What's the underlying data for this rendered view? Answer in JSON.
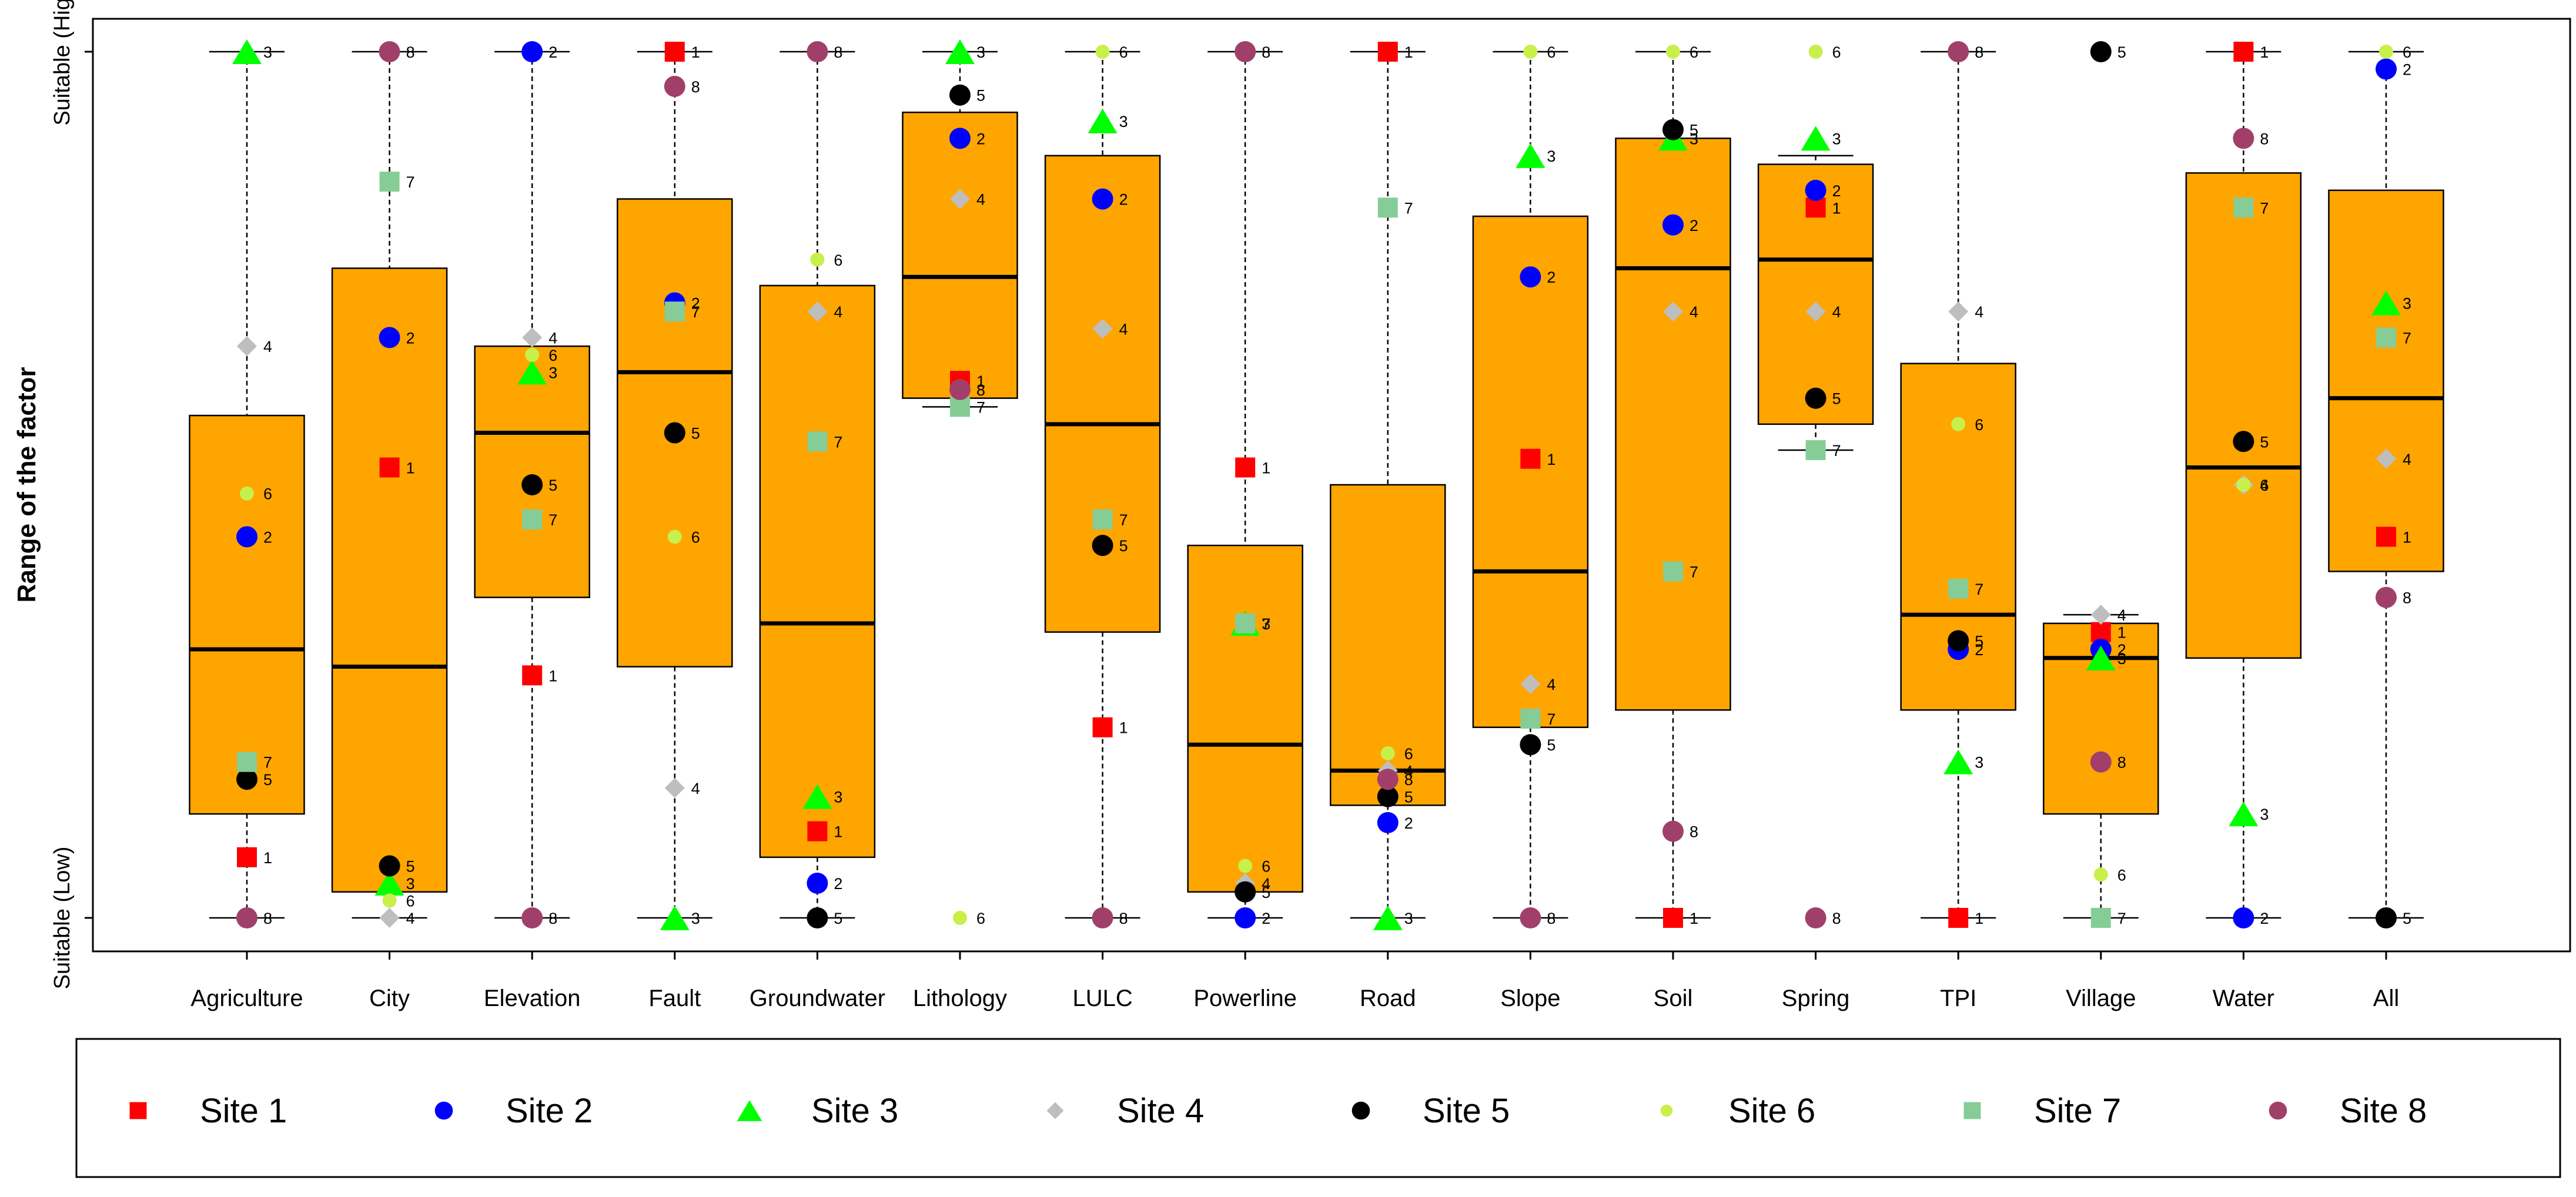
{
  "chart_data": {
    "type": "boxplot",
    "ylabel": "Range of the factor",
    "ylim": [
      0,
      1
    ],
    "y_ticks": [
      {
        "value": 0,
        "label": "Suitable (Low)"
      },
      {
        "value": 1,
        "label": "Suitable (High)"
      }
    ],
    "categories": [
      "Agriculture",
      "City",
      "Elevation",
      "Fault",
      "Groundwater",
      "Lithology",
      "LULC",
      "Powerline",
      "Road",
      "Slope",
      "Soil",
      "Spring",
      "TPI",
      "Village",
      "Water",
      "All"
    ],
    "boxes": [
      {
        "q1": 0.12,
        "median": 0.31,
        "q3": 0.58,
        "min": 0,
        "max": 1
      },
      {
        "q1": 0.03,
        "median": 0.29,
        "q3": 0.75,
        "min": 0,
        "max": 1
      },
      {
        "q1": 0.37,
        "median": 0.56,
        "q3": 0.66,
        "min": 0,
        "max": 1
      },
      {
        "q1": 0.29,
        "median": 0.63,
        "q3": 0.83,
        "min": 0,
        "max": 1
      },
      {
        "q1": 0.07,
        "median": 0.34,
        "q3": 0.73,
        "min": 0,
        "max": 1
      },
      {
        "q1": 0.6,
        "median": 0.74,
        "q3": 0.93,
        "min": 0.59,
        "max": 1
      },
      {
        "q1": 0.33,
        "median": 0.57,
        "q3": 0.88,
        "min": 0,
        "max": 1
      },
      {
        "q1": 0.03,
        "median": 0.2,
        "q3": 0.43,
        "min": 0,
        "max": 1
      },
      {
        "q1": 0.13,
        "median": 0.17,
        "q3": 0.5,
        "min": 0,
        "max": 1
      },
      {
        "q1": 0.22,
        "median": 0.4,
        "q3": 0.81,
        "min": 0,
        "max": 1
      },
      {
        "q1": 0.24,
        "median": 0.75,
        "q3": 0.9,
        "min": 0,
        "max": 1
      },
      {
        "q1": 0.57,
        "median": 0.76,
        "q3": 0.87,
        "min": 0.54,
        "max": 0.88
      },
      {
        "q1": 0.24,
        "median": 0.35,
        "q3": 0.64,
        "min": 0,
        "max": 1
      },
      {
        "q1": 0.12,
        "median": 0.3,
        "q3": 0.34,
        "min": 0,
        "max": 0.35
      },
      {
        "q1": 0.3,
        "median": 0.52,
        "q3": 0.86,
        "min": 0,
        "max": 1
      },
      {
        "q1": 0.4,
        "median": 0.6,
        "q3": 0.84,
        "min": 0,
        "max": 1
      }
    ],
    "series": [
      {
        "name": "Site 1",
        "label": "1",
        "shape": "square",
        "color": "#ff0000",
        "values": [
          0.07,
          0.52,
          0.28,
          1.0,
          0.1,
          0.62,
          0.22,
          0.52,
          1.0,
          0.53,
          0.0,
          0.82,
          0.0,
          0.33,
          1.0,
          0.44
        ]
      },
      {
        "name": "Site 2",
        "label": "2",
        "shape": "circle",
        "color": "#0000ff",
        "values": [
          0.44,
          0.67,
          1.0,
          0.71,
          0.04,
          0.9,
          0.83,
          0.0,
          0.11,
          0.74,
          0.8,
          0.84,
          0.31,
          0.31,
          0.0,
          0.98
        ]
      },
      {
        "name": "Site 3",
        "label": "3",
        "shape": "triangle",
        "color": "#00ff00",
        "values": [
          1.0,
          0.04,
          0.63,
          0.0,
          0.14,
          1.0,
          0.92,
          0.34,
          0.0,
          0.88,
          0.9,
          0.9,
          0.18,
          0.3,
          0.12,
          0.71
        ]
      },
      {
        "name": "Site 4",
        "label": "4",
        "shape": "diamond",
        "color": "#bebebe",
        "values": [
          0.66,
          0.0,
          0.67,
          0.15,
          0.7,
          0.83,
          0.68,
          0.04,
          0.17,
          0.27,
          0.7,
          0.7,
          0.7,
          0.35,
          0.5,
          0.53
        ]
      },
      {
        "name": "Site 5",
        "label": "5",
        "shape": "circle",
        "color": "#000000",
        "values": [
          0.16,
          0.06,
          0.5,
          0.56,
          0.0,
          0.95,
          0.43,
          0.03,
          0.14,
          0.2,
          0.91,
          0.6,
          0.32,
          1.0,
          0.55,
          0.0
        ]
      },
      {
        "name": "Site 6",
        "label": "6",
        "shape": "small-circle",
        "color": "#c8f04b",
        "values": [
          0.49,
          0.02,
          0.65,
          0.44,
          0.76,
          0.0,
          1.0,
          0.06,
          0.19,
          1.0,
          1.0,
          1.0,
          0.57,
          0.05,
          0.5,
          1.0
        ]
      },
      {
        "name": "Site 7",
        "label": "7",
        "shape": "square",
        "color": "#86cc96",
        "values": [
          0.18,
          0.85,
          0.46,
          0.7,
          0.55,
          0.59,
          0.46,
          0.34,
          0.82,
          0.23,
          0.4,
          0.54,
          0.38,
          0.0,
          0.82,
          0.67
        ]
      },
      {
        "name": "Site 8",
        "label": "8",
        "shape": "circle",
        "color": "#a0406a",
        "values": [
          0.0,
          1.0,
          0.0,
          0.96,
          1.0,
          0.61,
          0.0,
          1.0,
          0.16,
          0.0,
          0.1,
          0.0,
          1.0,
          0.18,
          0.9,
          0.37
        ]
      }
    ],
    "legend": {
      "position": "bottom"
    },
    "colors": {
      "box_fill": "#ffa500",
      "box_border": "#000000",
      "median": "#000000",
      "whisker": "#000000"
    }
  }
}
